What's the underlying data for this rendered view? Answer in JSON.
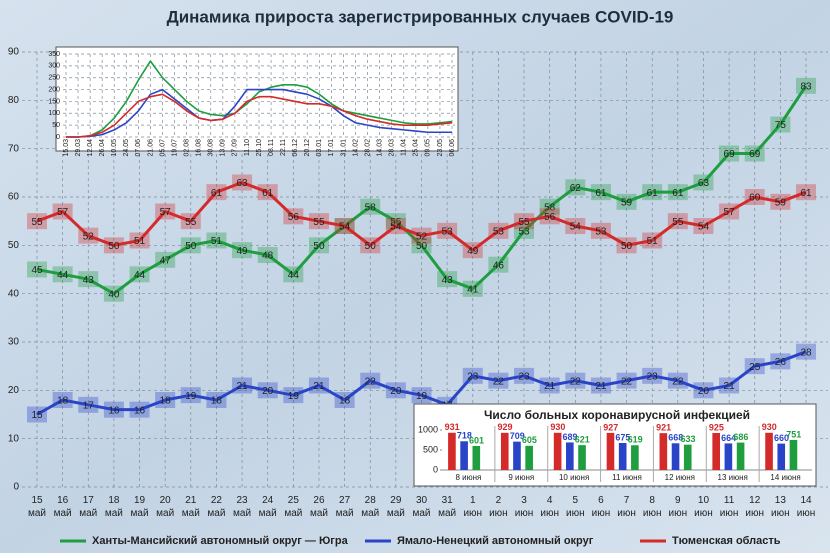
{
  "chart_data": [
    {
      "type": "line",
      "title": "Динамика прироста зарегистрированных случаев COVID-19",
      "categories": [
        "15 май",
        "16 май",
        "17 май",
        "18 май",
        "19 май",
        "20 май",
        "21 май",
        "22 май",
        "23 май",
        "24 май",
        "25 май",
        "26 май",
        "27 май",
        "28 май",
        "29 май",
        "30 май",
        "31 май",
        "1 июн",
        "2 июн",
        "3 июн",
        "4 июн",
        "5 июн",
        "6 июн",
        "7 июн",
        "8 июн",
        "9 июн",
        "10 июн",
        "11 июн",
        "12 июн",
        "13 июн",
        "14 июн"
      ],
      "series": [
        {
          "name": "Ханты-Мансийский автономный округ — Югра",
          "color": "#1e9e3e",
          "values": [
            45,
            44,
            43,
            40,
            44,
            47,
            50,
            51,
            49,
            48,
            44,
            50,
            54,
            58,
            55,
            50,
            43,
            41,
            46,
            53,
            58,
            62,
            61,
            59,
            61,
            61,
            63,
            69,
            69,
            75,
            83
          ]
        },
        {
          "name": "Ямало-Ненецкий автономный округ",
          "color": "#2a44c8",
          "values": [
            15,
            18,
            17,
            16,
            16,
            18,
            19,
            18,
            21,
            20,
            19,
            21,
            18,
            22,
            20,
            19,
            17,
            23,
            22,
            23,
            21,
            22,
            21,
            22,
            23,
            22,
            20,
            21,
            25,
            26,
            28
          ]
        },
        {
          "name": "Тюменская область",
          "color": "#d42a2a",
          "values": [
            55,
            57,
            52,
            50,
            51,
            57,
            55,
            61,
            63,
            61,
            56,
            55,
            54,
            50,
            54,
            52,
            53,
            49,
            53,
            55,
            56,
            54,
            53,
            50,
            51,
            55,
            54,
            57,
            60,
            59,
            61
          ]
        }
      ],
      "ylim": [
        0,
        90
      ],
      "yticks": [
        0,
        10,
        20,
        30,
        40,
        50,
        60,
        70,
        80,
        90
      ],
      "grid": true,
      "legend": "bottom"
    },
    {
      "type": "line",
      "categories": [
        "15.03",
        "29.03",
        "12.04",
        "26.04",
        "10.05",
        "24.05",
        "07.06",
        "21.06",
        "05.07",
        "19.07",
        "02.08",
        "16.08",
        "30.08",
        "13.09",
        "27.09",
        "11.10",
        "25.10",
        "08.11",
        "22.11",
        "06.12",
        "20.12",
        "03.01",
        "17.01",
        "31.01",
        "14.02",
        "28.02",
        "14.03",
        "28.03",
        "11.04",
        "25.04",
        "09.05",
        "23.05",
        "06.06"
      ],
      "series": [
        {
          "color": "#1e9e3e",
          "values": [
            0,
            0,
            5,
            30,
            80,
            150,
            240,
            320,
            250,
            200,
            150,
            110,
            95,
            90,
            100,
            140,
            190,
            210,
            220,
            220,
            210,
            180,
            140,
            110,
            100,
            90,
            80,
            70,
            60,
            55,
            55,
            60,
            65
          ]
        },
        {
          "color": "#2a44c8",
          "values": [
            0,
            0,
            3,
            10,
            30,
            60,
            110,
            180,
            200,
            160,
            120,
            80,
            70,
            75,
            130,
            200,
            200,
            200,
            200,
            190,
            180,
            160,
            130,
            90,
            60,
            50,
            40,
            35,
            30,
            25,
            20,
            20,
            20
          ]
        },
        {
          "color": "#d42a2a",
          "values": [
            0,
            0,
            5,
            20,
            50,
            100,
            150,
            170,
            180,
            150,
            110,
            80,
            70,
            75,
            100,
            150,
            170,
            170,
            160,
            150,
            140,
            140,
            130,
            110,
            90,
            75,
            65,
            55,
            50,
            50,
            50,
            55,
            60
          ]
        }
      ],
      "ylim": [
        0,
        350
      ],
      "yticks": [
        0,
        50,
        100,
        150,
        200,
        250,
        300,
        350
      ],
      "grid": true
    },
    {
      "type": "bar",
      "title": "Число больных коронавирусной инфекцией",
      "categories": [
        "8 июня",
        "9 июня",
        "10 июня",
        "11 июня",
        "12 июня",
        "13 июня",
        "14 июня"
      ],
      "series": [
        {
          "color": "#d42a2a",
          "values": [
            931,
            929,
            930,
            927,
            921,
            925,
            930
          ]
        },
        {
          "color": "#2a44c8",
          "values": [
            718,
            709,
            689,
            675,
            668,
            664,
            660
          ]
        },
        {
          "color": "#1e9e3e",
          "values": [
            601,
            605,
            621,
            619,
            633,
            686,
            751
          ]
        }
      ],
      "ylim": [
        0,
        1000
      ],
      "yticks": [
        0,
        500,
        1000
      ]
    }
  ]
}
